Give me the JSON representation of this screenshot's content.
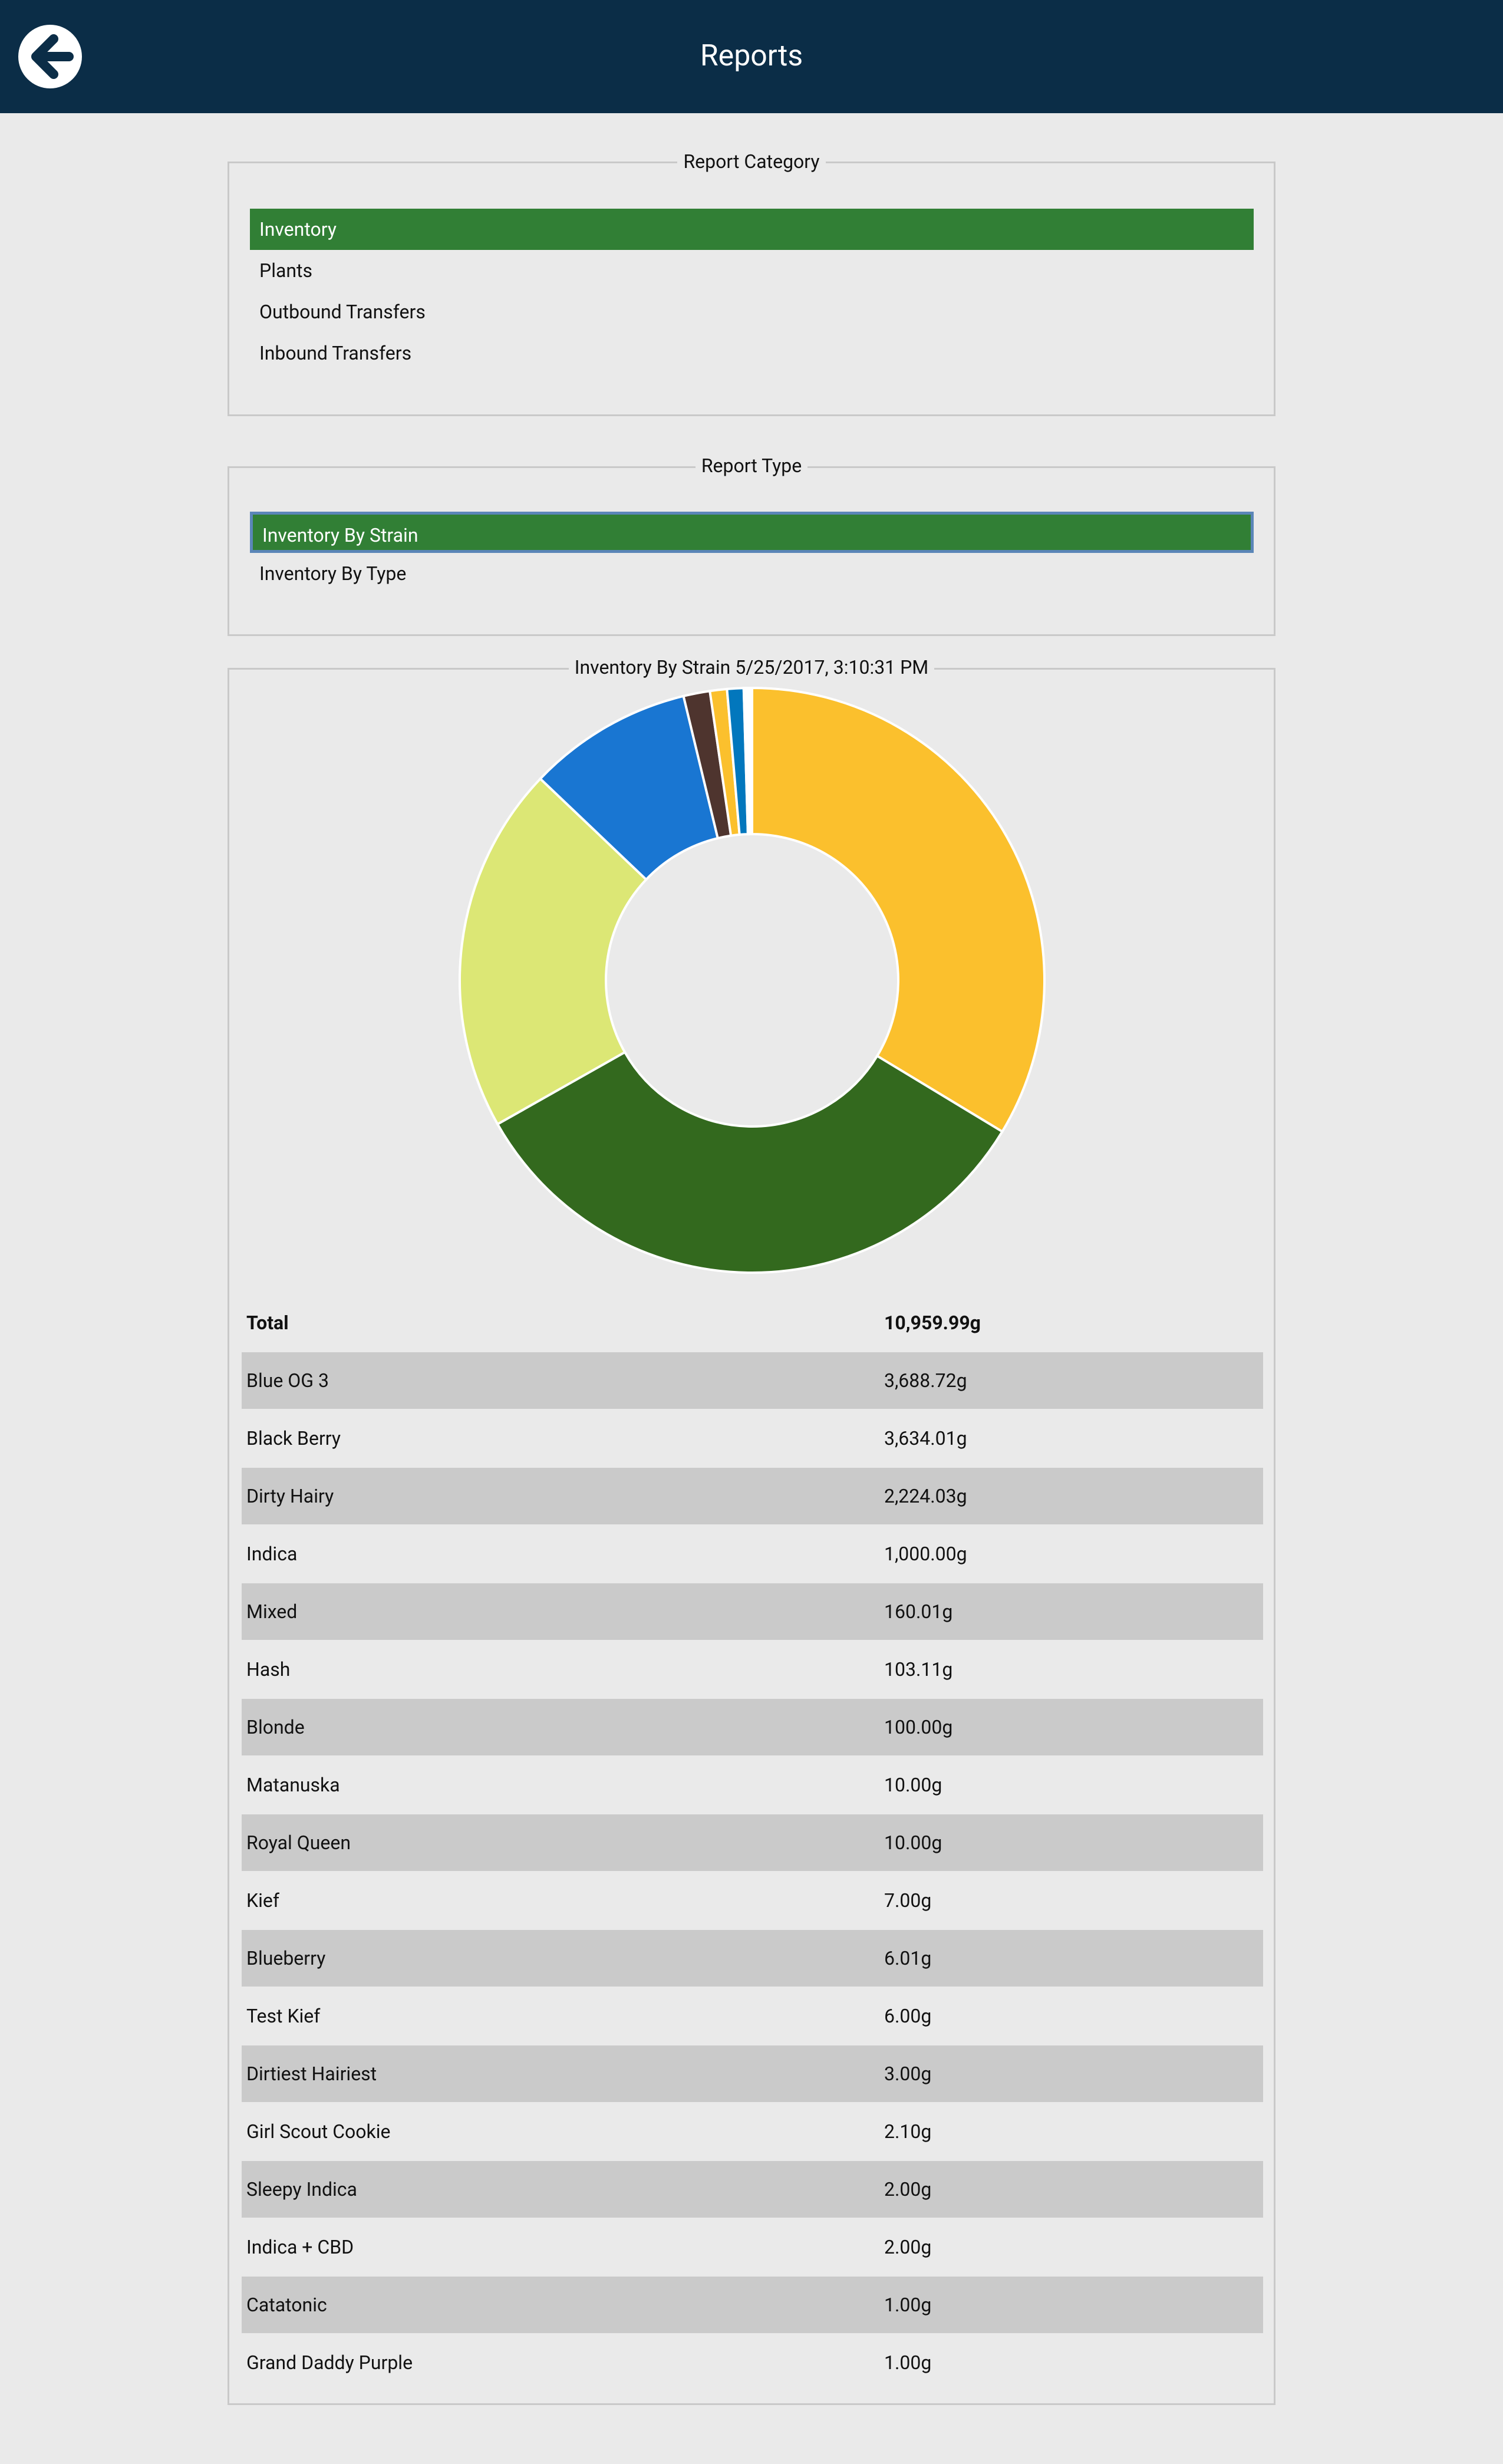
{
  "header": {
    "title": "Reports"
  },
  "report_category": {
    "legend": "Report Category",
    "items": [
      "Inventory",
      "Plants",
      "Outbound Transfers",
      "Inbound Transfers"
    ],
    "selected": 0
  },
  "report_type": {
    "legend": "Report Type",
    "items": [
      "Inventory By Strain",
      "Inventory By Type"
    ],
    "selected": 0
  },
  "chart_data": {
    "type": "pie",
    "title": "Inventory By Strain 5/25/2017, 3:10:31 PM",
    "donut": true,
    "total_label": "Total",
    "total": 10959.99,
    "total_value_label": "10,959.99g",
    "categories": [
      "Blue OG 3",
      "Black Berry",
      "Dirty Hairy",
      "Indica",
      "Mixed",
      "Hash",
      "Blonde",
      "Matanuska",
      "Royal Queen",
      "Kief",
      "Blueberry",
      "Test Kief",
      "Dirtiest Hairiest",
      "Girl Scout Cookie",
      "Sleepy Indica",
      "Indica + CBD",
      "Catatonic",
      "Grand Daddy Purple"
    ],
    "values": [
      3688.72,
      3634.01,
      2224.03,
      1000.0,
      160.01,
      103.11,
      100.0,
      10.0,
      10.0,
      7.0,
      6.01,
      6.0,
      3.0,
      2.1,
      2.0,
      2.0,
      1.0,
      1.0
    ],
    "value_labels": [
      "3,688.72g",
      "3,634.01g",
      "2,224.03g",
      "1,000.00g",
      "160.01g",
      "103.11g",
      "100.00g",
      "10.00g",
      "10.00g",
      "7.00g",
      "6.01g",
      "6.00g",
      "3.00g",
      "2.10g",
      "2.00g",
      "2.00g",
      "1.00g",
      "1.00g"
    ],
    "colors": [
      "#fbc02d",
      "#33691e",
      "#dce775",
      "#1976d2",
      "#4e342e",
      "#fbc02d",
      "#0277bd",
      "#33691e",
      "#dce775",
      "#1976d2",
      "#4e342e",
      "#fbc02d",
      "#0277bd",
      "#33691e",
      "#dce775",
      "#1976d2",
      "#4e342e",
      "#fbc02d"
    ]
  }
}
